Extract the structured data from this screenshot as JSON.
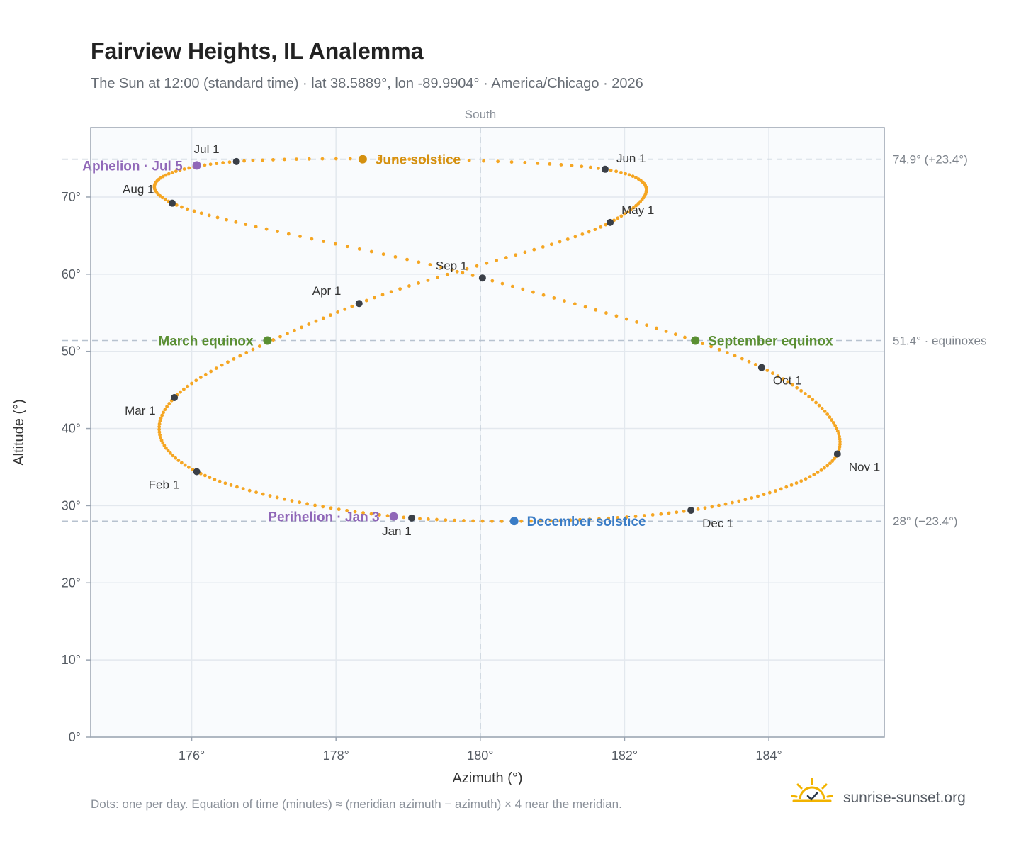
{
  "title": "Fairview Heights, IL Analemma",
  "subtitle": "The Sun at 12:00 (standard time) · lat 38.5889°, lon -89.9904° · America/Chicago · 2026",
  "meridian_label": "South",
  "footnote": "Dots: one per day. Equation of time (minutes) ≈ (meridian azimuth − azimuth) × 4 near the meridian.",
  "brand": {
    "name": "sunrise-sunset.org",
    "logo_icon": "sun-check-icon"
  },
  "colors": {
    "dots": "#f5a623",
    "month_marker": "#3a3f47",
    "june_solstice": "#d4900f",
    "december_solstice": "#3a7cc6",
    "equinox": "#5a8f32",
    "apsis": "#9067b8",
    "plot_background": "#f9fbfd",
    "grid": "#e3e8ee",
    "reference_line": "#b7c2cf"
  },
  "chart_data": {
    "type": "scatter",
    "xlabel": "Azimuth (°)",
    "ylabel": "Altitude (°)",
    "xlim": [
      174.6,
      185.6
    ],
    "ylim": [
      0,
      79
    ],
    "x_ticks": [
      176,
      178,
      180,
      182,
      184
    ],
    "x_tick_labels": [
      "176°",
      "178°",
      "180°",
      "182°",
      "184°"
    ],
    "y_ticks": [
      0,
      10,
      20,
      30,
      40,
      50,
      60,
      70
    ],
    "y_tick_labels": [
      "0°",
      "10°",
      "20°",
      "30°",
      "40°",
      "50°",
      "60°",
      "70°"
    ],
    "grid": true,
    "meridian_azimuth": 180,
    "reference_lines": [
      {
        "altitude": 74.9,
        "label": "74.9° (+23.4°)"
      },
      {
        "altitude": 51.4,
        "label": "51.4° · equinoxes"
      },
      {
        "altitude": 28.0,
        "label": "28° (−23.4°)"
      }
    ],
    "month_markers": [
      {
        "label": "Jan 1",
        "azimuth": 179.05,
        "altitude": 28.4
      },
      {
        "label": "Feb 1",
        "azimuth": 176.07,
        "altitude": 34.4
      },
      {
        "label": "Mar 1",
        "azimuth": 175.76,
        "altitude": 44.0
      },
      {
        "label": "Apr 1",
        "azimuth": 178.32,
        "altitude": 56.2
      },
      {
        "label": "May 1",
        "azimuth": 181.8,
        "altitude": 66.7
      },
      {
        "label": "Jun 1",
        "azimuth": 181.73,
        "altitude": 73.6
      },
      {
        "label": "Jul 1",
        "azimuth": 176.62,
        "altitude": 74.6
      },
      {
        "label": "Aug 1",
        "azimuth": 175.73,
        "altitude": 69.2
      },
      {
        "label": "Sep 1",
        "azimuth": 180.03,
        "altitude": 59.5
      },
      {
        "label": "Oct 1",
        "azimuth": 183.9,
        "altitude": 47.9
      },
      {
        "label": "Nov 1",
        "azimuth": 184.95,
        "altitude": 36.7
      },
      {
        "label": "Dec 1",
        "azimuth": 182.92,
        "altitude": 29.4
      }
    ],
    "events": [
      {
        "label": "June solstice",
        "azimuth": 178.37,
        "altitude": 74.9,
        "color_key": "june_solstice"
      },
      {
        "label": "December solstice",
        "azimuth": 180.47,
        "altitude": 28.0,
        "color_key": "december_solstice"
      },
      {
        "label": "March equinox",
        "azimuth": 177.05,
        "altitude": 51.4,
        "color_key": "equinox"
      },
      {
        "label": "September equinox",
        "azimuth": 182.98,
        "altitude": 51.4,
        "color_key": "equinox"
      },
      {
        "label": "Aphelion · Jul 5",
        "azimuth": 176.07,
        "altitude": 74.1,
        "color_key": "apsis"
      },
      {
        "label": "Perihelion · Jan 3",
        "azimuth": 178.8,
        "altitude": 28.6,
        "color_key": "apsis"
      }
    ]
  }
}
